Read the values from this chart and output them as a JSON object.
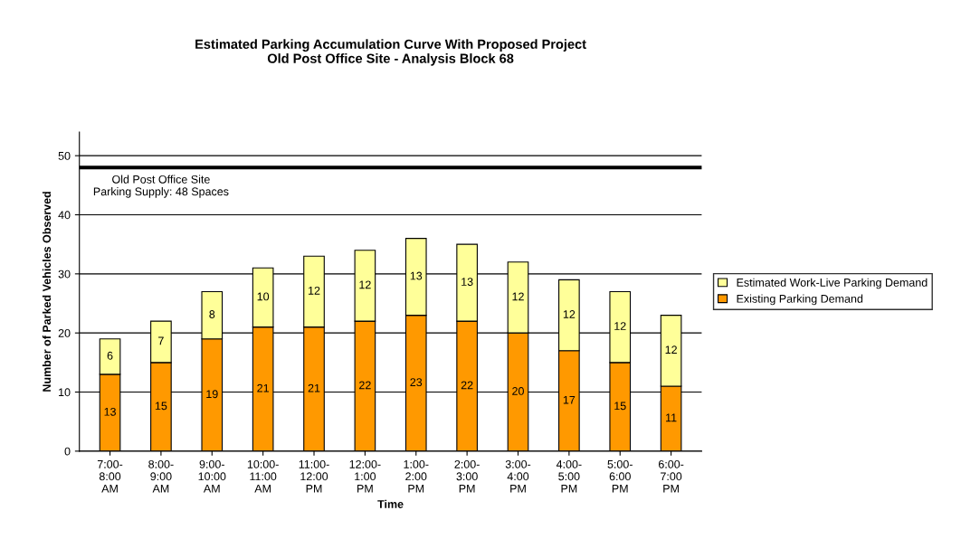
{
  "chart_data": {
    "type": "bar",
    "stacked": true,
    "title": "Estimated Parking Accumulation Curve With Proposed Project\nOld Post Office Site - Analysis Block 68",
    "xlabel": "Time",
    "ylabel": "Number of Parked Vehicles Observed",
    "categories": [
      "7:00-\n8:00\nAM",
      "8:00-\n9:00\nAM",
      "9:00-\n10:00\nAM",
      "10:00-\n11:00\nAM",
      "11:00-\n12:00\nPM",
      "12:00-\n1:00\nPM",
      "1:00-\n2:00\nPM",
      "2:00-\n3:00\nPM",
      "3:00-\n4:00\nPM",
      "4:00-\n5:00\nPM",
      "5:00-\n6:00\nPM",
      "6:00-\n7:00\nPM"
    ],
    "series": [
      {
        "name": "Existing Parking Demand",
        "color": "#ff9900",
        "values": [
          13,
          15,
          19,
          21,
          21,
          22,
          23,
          22,
          20,
          17,
          15,
          11
        ]
      },
      {
        "name": "Estimated Work-Live Parking Demand",
        "color": "#ffff99",
        "values": [
          6,
          7,
          8,
          10,
          12,
          12,
          13,
          13,
          12,
          12,
          12,
          12
        ]
      }
    ],
    "ylim": [
      0,
      54
    ],
    "yticks": [
      0,
      10,
      20,
      30,
      40,
      50
    ],
    "grid": "y",
    "legend": "right",
    "data_labels": true,
    "ref_lines": [
      {
        "axis": "y",
        "value": 48,
        "label": "Old Post Office Site\nParking Supply: 48 Spaces",
        "color": "#000000"
      }
    ]
  }
}
